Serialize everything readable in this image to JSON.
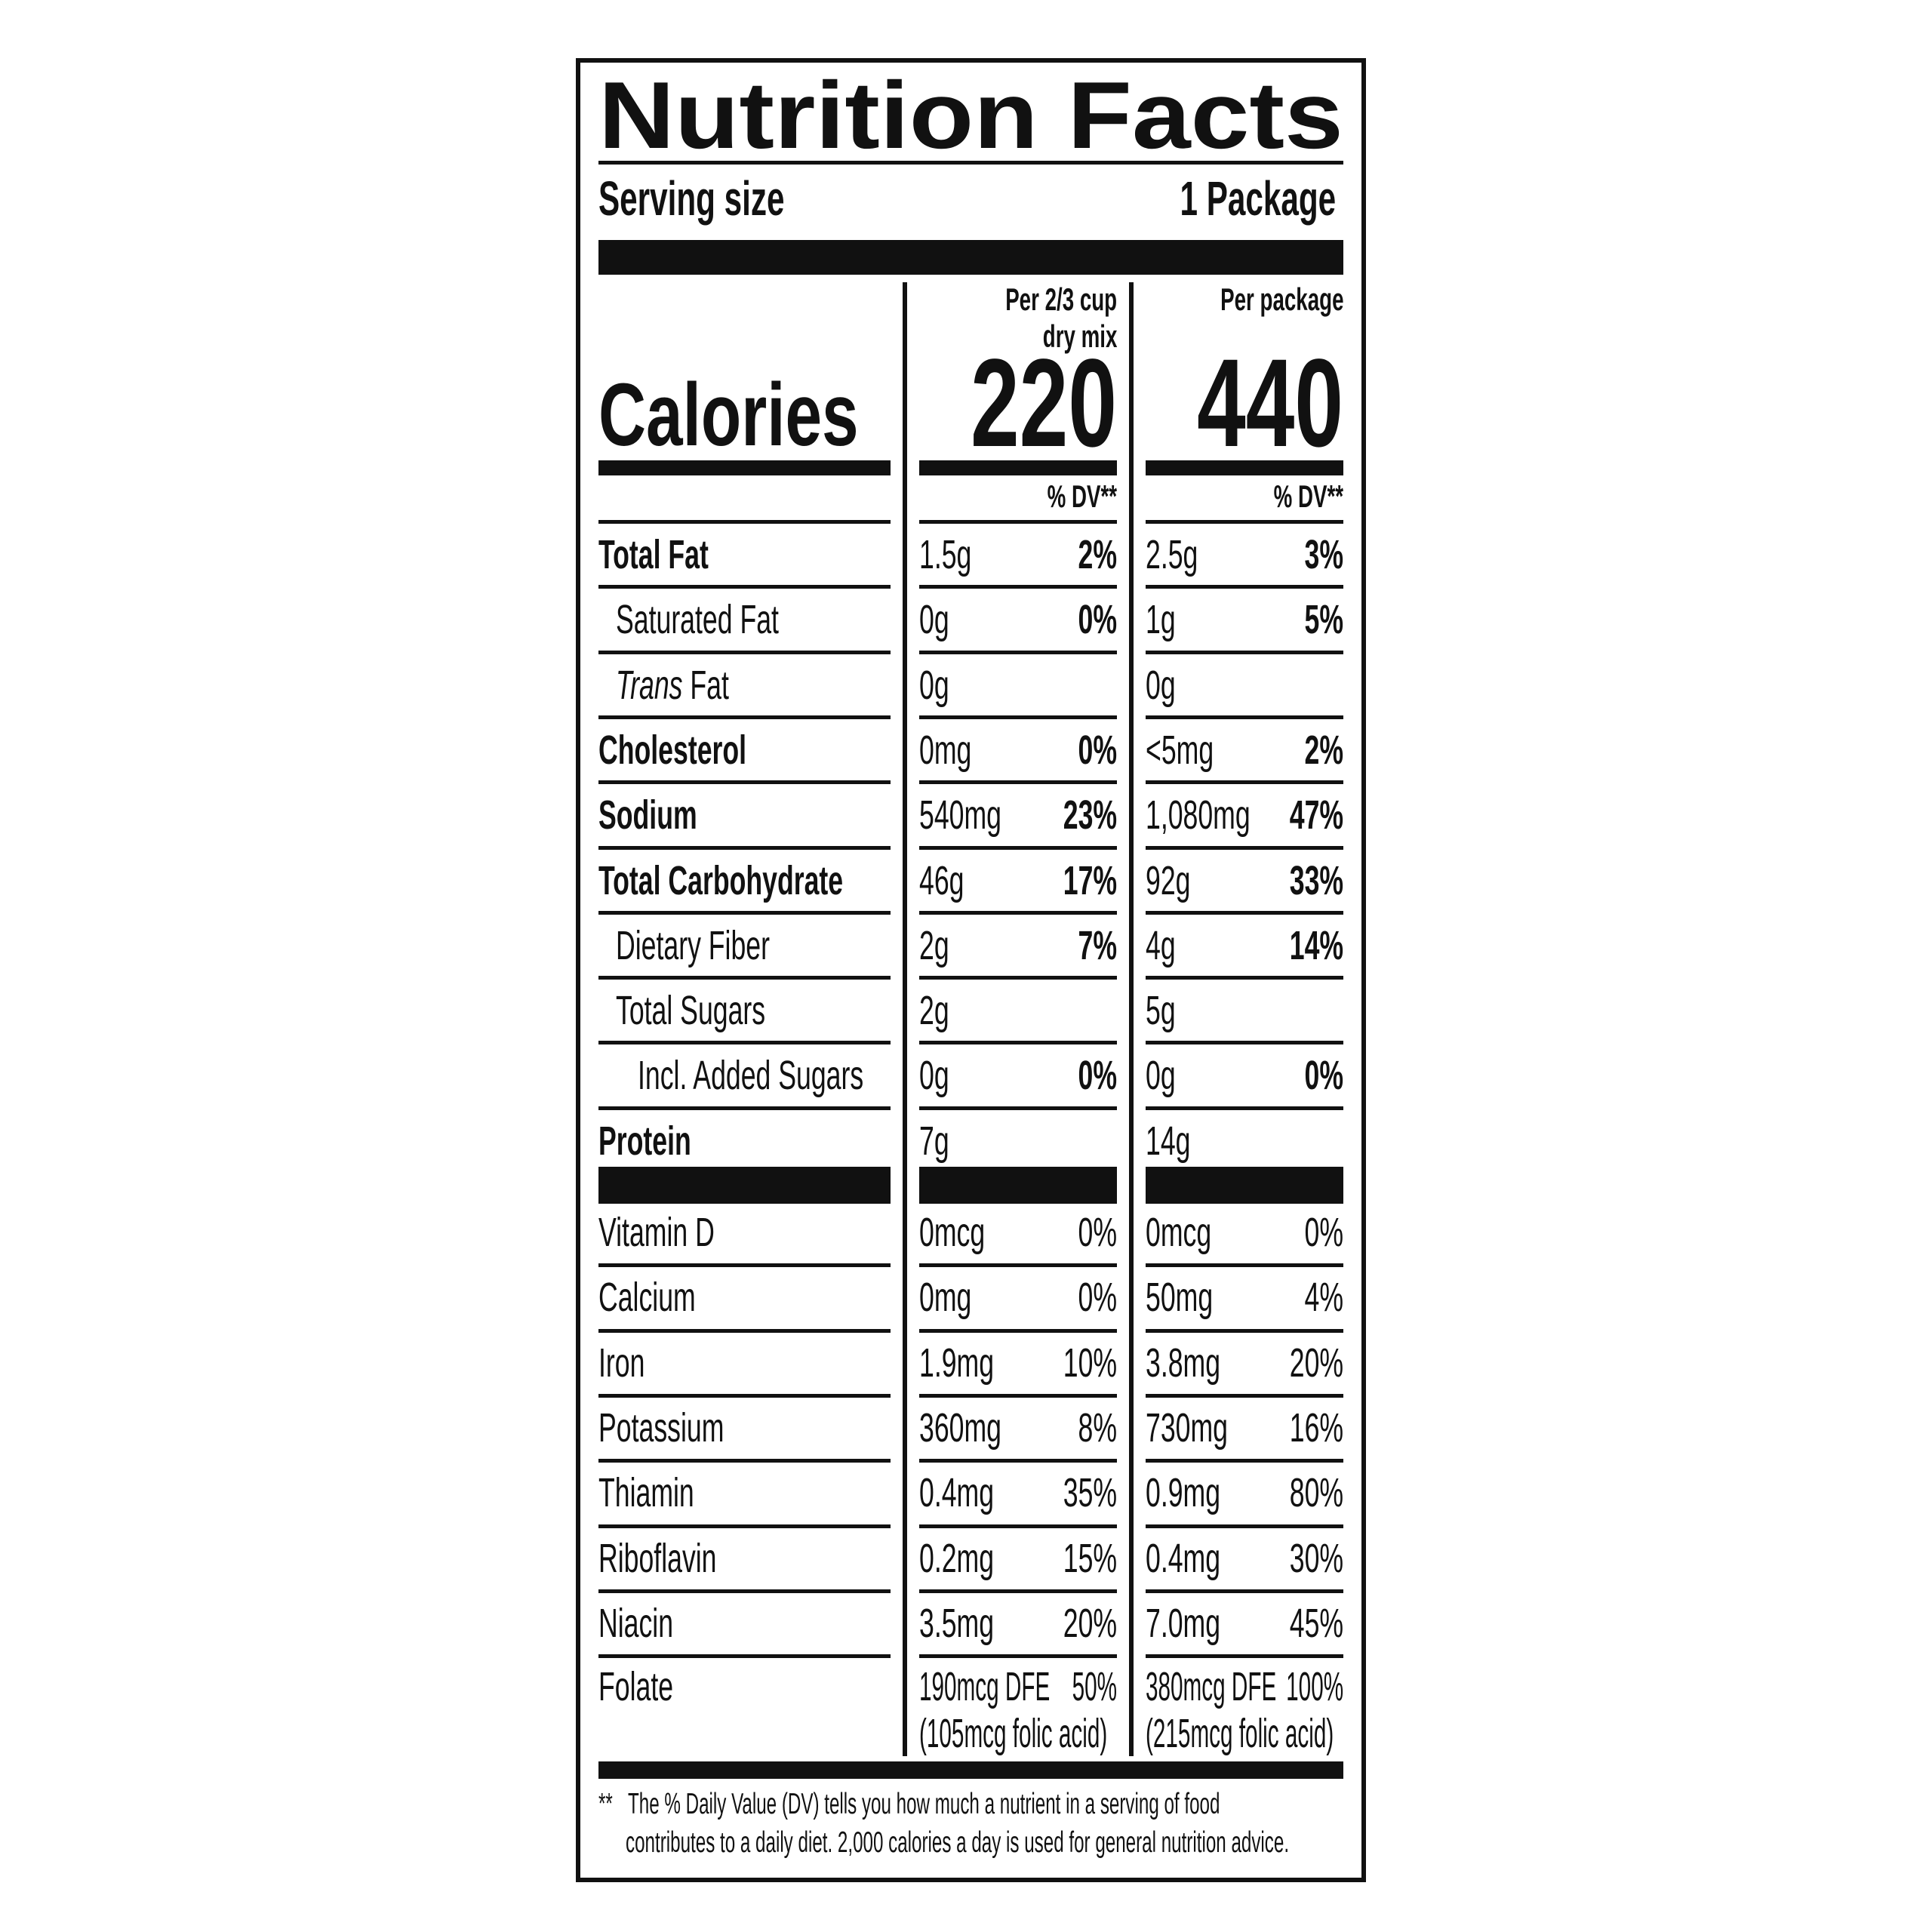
{
  "title": "Nutrition Facts",
  "serving": {
    "label": "Serving size",
    "value": "1 Package"
  },
  "columns": [
    {
      "header_line1": "Per 2/3 cup",
      "header_line2": "dry mix",
      "calories": "220",
      "dv_label": "% DV**"
    },
    {
      "header_line1": "Per package",
      "header_line2": "",
      "calories": "440",
      "dv_label": "% DV**"
    }
  ],
  "calories_label": "Calories",
  "nutrients": [
    {
      "label": "Total Fat",
      "bold": true,
      "indent": 0,
      "c1": {
        "amount": "1.5g",
        "dv": "2%"
      },
      "c2": {
        "amount": "2.5g",
        "dv": "3%"
      }
    },
    {
      "label": "Saturated Fat",
      "bold": false,
      "indent": 1,
      "c1": {
        "amount": "0g",
        "dv": "0%"
      },
      "c2": {
        "amount": "1g",
        "dv": "5%"
      }
    },
    {
      "label_italic": "Trans",
      "label": " Fat",
      "bold": false,
      "indent": 1,
      "c1": {
        "amount": "0g",
        "dv": ""
      },
      "c2": {
        "amount": "0g",
        "dv": ""
      }
    },
    {
      "label": "Cholesterol",
      "bold": true,
      "indent": 0,
      "c1": {
        "amount": "0mg",
        "dv": "0%"
      },
      "c2": {
        "amount": "<5mg",
        "dv": "2%"
      }
    },
    {
      "label": "Sodium",
      "bold": true,
      "indent": 0,
      "c1": {
        "amount": "540mg",
        "dv": "23%"
      },
      "c2": {
        "amount": "1,080mg",
        "dv": "47%"
      }
    },
    {
      "label": "Total Carbohydrate",
      "bold": true,
      "indent": 0,
      "c1": {
        "amount": "46g",
        "dv": "17%"
      },
      "c2": {
        "amount": "92g",
        "dv": "33%"
      }
    },
    {
      "label": "Dietary Fiber",
      "bold": false,
      "indent": 1,
      "c1": {
        "amount": "2g",
        "dv": "7%"
      },
      "c2": {
        "amount": "4g",
        "dv": "14%"
      }
    },
    {
      "label": "Total Sugars",
      "bold": false,
      "indent": 1,
      "c1": {
        "amount": "2g",
        "dv": ""
      },
      "c2": {
        "amount": "5g",
        "dv": ""
      }
    },
    {
      "label": "Incl. Added Sugars",
      "bold": false,
      "indent": 2,
      "c1": {
        "amount": "0g",
        "dv": "0%"
      },
      "c2": {
        "amount": "0g",
        "dv": "0%"
      }
    },
    {
      "label": "Protein",
      "bold": true,
      "indent": 0,
      "c1": {
        "amount": "7g",
        "dv": ""
      },
      "c2": {
        "amount": "14g",
        "dv": ""
      }
    }
  ],
  "vitamins": [
    {
      "label": "Vitamin D",
      "c1": {
        "amount": "0mcg",
        "dv": "0%"
      },
      "c2": {
        "amount": "0mcg",
        "dv": "0%"
      }
    },
    {
      "label": "Calcium",
      "c1": {
        "amount": "0mg",
        "dv": "0%"
      },
      "c2": {
        "amount": "50mg",
        "dv": "4%"
      }
    },
    {
      "label": "Iron",
      "c1": {
        "amount": "1.9mg",
        "dv": "10%"
      },
      "c2": {
        "amount": "3.8mg",
        "dv": "20%"
      }
    },
    {
      "label": "Potassium",
      "c1": {
        "amount": "360mg",
        "dv": "8%"
      },
      "c2": {
        "amount": "730mg",
        "dv": "16%"
      }
    },
    {
      "label": "Thiamin",
      "c1": {
        "amount": "0.4mg",
        "dv": "35%"
      },
      "c2": {
        "amount": "0.9mg",
        "dv": "80%"
      }
    },
    {
      "label": "Riboflavin",
      "c1": {
        "amount": "0.2mg",
        "dv": "15%"
      },
      "c2": {
        "amount": "0.4mg",
        "dv": "30%"
      }
    },
    {
      "label": "Niacin",
      "c1": {
        "amount": "3.5mg",
        "dv": "20%"
      },
      "c2": {
        "amount": "7.0mg",
        "dv": "45%"
      }
    }
  ],
  "folate": {
    "label": "Folate",
    "c1": {
      "amount": "190mcg DFE",
      "dv": "50%",
      "note": "(105mcg folic acid)"
    },
    "c2": {
      "amount": "380mcg DFE",
      "dv": "100%",
      "note": "(215mcg folic acid)"
    }
  },
  "footnote": {
    "marker": "**",
    "line1": "The % Daily Value (DV) tells you how much a nutrient in a serving of food",
    "line2": "contributes to a daily diet. 2,000 calories a day is used for general nutrition advice."
  }
}
